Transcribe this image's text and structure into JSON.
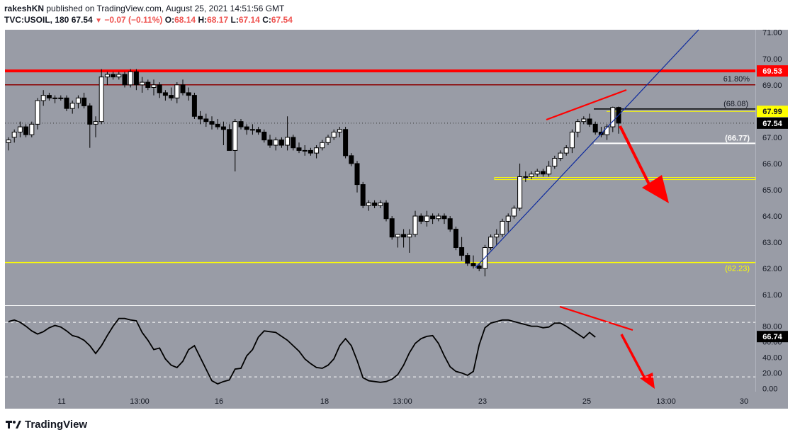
{
  "header": {
    "author": "rakeshKN",
    "published_text": "published on TradingView.com, August 25, 2021 14:51:56 GMT",
    "symbol": "TVC:USOIL, 180",
    "last": "67.54",
    "change": "−0.07 (−0.11%)",
    "o_label": "O:",
    "o_value": "68.14",
    "h_label": "H:",
    "h_value": "68.17",
    "l_label": "L:",
    "l_value": "67.14",
    "c_label": "C:",
    "c_value": "67.54"
  },
  "footer": {
    "brand": "TradingView"
  },
  "colors": {
    "background": "#999ca6",
    "up_candle": "#ffffff",
    "down_candle": "#000000",
    "resistance": "#ff0000",
    "fib": "#8b0000",
    "support": "#ffff00",
    "trendline": "#0d2a9e",
    "annotation": "#ff0000"
  },
  "chart_data": [
    {
      "type": "candlestick",
      "pane": "price",
      "x_ticks": [
        "11",
        "13:00",
        "16",
        "18",
        "13:00",
        "23",
        "25",
        "13:00",
        "30"
      ],
      "y_ticks": [
        "71.00",
        "70.00",
        "69.00",
        "68.00",
        "67.00",
        "66.00",
        "65.00",
        "64.00",
        "63.00",
        "62.00",
        "61.00"
      ],
      "ylim": [
        60.6,
        71.1
      ],
      "ohlc": [
        [
          66.8,
          67.0,
          66.5,
          66.9
        ],
        [
          67.0,
          67.3,
          66.8,
          67.2
        ],
        [
          67.2,
          67.6,
          67.0,
          67.4
        ],
        [
          67.4,
          67.5,
          67.0,
          67.1
        ],
        [
          67.1,
          67.6,
          67.0,
          67.5
        ],
        [
          67.5,
          68.5,
          67.3,
          68.4
        ],
        [
          68.4,
          68.8,
          68.2,
          68.6
        ],
        [
          68.6,
          68.7,
          68.4,
          68.5
        ],
        [
          68.5,
          68.6,
          68.3,
          68.5
        ],
        [
          68.5,
          68.6,
          68.4,
          68.5
        ],
        [
          68.5,
          68.6,
          68.0,
          68.1
        ],
        [
          68.1,
          68.4,
          67.9,
          68.3
        ],
        [
          68.3,
          68.6,
          68.1,
          68.5
        ],
        [
          68.5,
          68.7,
          68.1,
          68.2
        ],
        [
          68.2,
          68.3,
          66.6,
          67.5
        ],
        [
          67.5,
          67.8,
          67.0,
          67.6
        ],
        [
          67.6,
          69.6,
          67.5,
          69.3
        ],
        [
          69.3,
          69.5,
          69.0,
          69.4
        ],
        [
          69.4,
          69.5,
          69.2,
          69.3
        ],
        [
          69.3,
          69.5,
          69.2,
          69.4
        ],
        [
          69.4,
          69.5,
          68.9,
          69.0
        ],
        [
          69.0,
          69.6,
          68.9,
          69.5
        ],
        [
          69.5,
          69.6,
          68.8,
          69.0
        ],
        [
          69.0,
          69.3,
          68.7,
          69.1
        ],
        [
          69.1,
          69.2,
          68.8,
          68.9
        ],
        [
          68.9,
          69.2,
          68.6,
          69.0
        ],
        [
          69.0,
          69.1,
          68.5,
          68.7
        ],
        [
          68.7,
          68.8,
          68.4,
          68.6
        ],
        [
          68.6,
          68.9,
          68.4,
          68.5
        ],
        [
          68.5,
          69.1,
          68.3,
          69.0
        ],
        [
          69.0,
          69.2,
          68.6,
          68.7
        ],
        [
          68.7,
          68.9,
          68.4,
          68.6
        ],
        [
          68.6,
          68.7,
          67.7,
          67.8
        ],
        [
          67.8,
          68.0,
          67.5,
          67.7
        ],
        [
          67.7,
          67.9,
          67.4,
          67.6
        ],
        [
          67.6,
          67.8,
          67.3,
          67.5
        ],
        [
          67.5,
          67.7,
          67.3,
          67.4
        ],
        [
          67.4,
          67.6,
          66.7,
          67.3
        ],
        [
          67.3,
          67.5,
          66.5,
          66.5
        ],
        [
          66.5,
          67.7,
          65.7,
          67.6
        ],
        [
          67.6,
          67.7,
          67.3,
          67.4
        ],
        [
          67.4,
          67.5,
          67.1,
          67.3
        ],
        [
          67.3,
          67.5,
          67.1,
          67.3
        ],
        [
          67.3,
          67.4,
          67.1,
          67.2
        ],
        [
          67.2,
          67.3,
          66.8,
          66.9
        ],
        [
          66.9,
          67.1,
          66.6,
          66.7
        ],
        [
          66.7,
          67.0,
          66.5,
          66.9
        ],
        [
          66.9,
          67.0,
          66.6,
          66.7
        ],
        [
          66.7,
          67.8,
          66.5,
          67.0
        ],
        [
          67.0,
          67.1,
          66.5,
          66.6
        ],
        [
          66.6,
          66.8,
          66.4,
          66.5
        ],
        [
          66.5,
          66.7,
          66.3,
          66.5
        ],
        [
          66.5,
          66.6,
          66.3,
          66.4
        ],
        [
          66.4,
          66.7,
          66.2,
          66.6
        ],
        [
          66.6,
          66.9,
          66.5,
          66.8
        ],
        [
          66.8,
          67.1,
          66.7,
          67.0
        ],
        [
          67.0,
          67.3,
          66.9,
          67.2
        ],
        [
          67.2,
          67.4,
          67.0,
          67.3
        ],
        [
          67.3,
          67.4,
          66.2,
          66.3
        ],
        [
          66.3,
          66.4,
          65.9,
          66.0
        ],
        [
          66.0,
          66.1,
          64.9,
          65.2
        ],
        [
          65.2,
          65.3,
          64.3,
          64.4
        ],
        [
          64.4,
          64.6,
          64.2,
          64.5
        ],
        [
          64.5,
          64.6,
          64.3,
          64.4
        ],
        [
          64.4,
          64.6,
          64.3,
          64.5
        ],
        [
          64.5,
          64.6,
          63.8,
          63.9
        ],
        [
          63.9,
          64.0,
          63.1,
          63.2
        ],
        [
          63.2,
          63.3,
          62.8,
          63.3
        ],
        [
          63.3,
          63.5,
          62.8,
          63.2
        ],
        [
          63.2,
          63.5,
          62.6,
          63.3
        ],
        [
          63.3,
          64.2,
          63.2,
          64.0
        ],
        [
          64.0,
          64.1,
          63.7,
          63.8
        ],
        [
          63.8,
          64.2,
          63.6,
          64.0
        ],
        [
          64.0,
          64.1,
          63.7,
          63.9
        ],
        [
          63.9,
          64.1,
          63.8,
          64.0
        ],
        [
          64.0,
          64.1,
          63.7,
          63.9
        ],
        [
          63.9,
          64.0,
          63.4,
          63.5
        ],
        [
          63.5,
          63.6,
          62.7,
          62.8
        ],
        [
          62.8,
          63.2,
          62.3,
          62.5
        ],
        [
          62.5,
          62.6,
          62.1,
          62.2
        ],
        [
          62.2,
          62.5,
          62.0,
          62.1
        ],
        [
          62.1,
          62.2,
          61.9,
          62.0
        ],
        [
          62.0,
          62.9,
          61.7,
          62.8
        ],
        [
          62.8,
          63.3,
          62.7,
          63.2
        ],
        [
          63.2,
          63.5,
          62.9,
          63.3
        ],
        [
          63.3,
          63.9,
          63.2,
          63.8
        ],
        [
          63.8,
          64.1,
          63.4,
          64.0
        ],
        [
          64.0,
          64.4,
          63.9,
          64.3
        ],
        [
          64.3,
          66.0,
          64.2,
          65.5
        ],
        [
          65.5,
          65.7,
          65.3,
          65.5
        ],
        [
          65.5,
          65.7,
          65.4,
          65.6
        ],
        [
          65.6,
          65.8,
          65.5,
          65.7
        ],
        [
          65.7,
          65.8,
          65.5,
          65.6
        ],
        [
          65.6,
          66.1,
          65.5,
          65.9
        ],
        [
          65.9,
          66.3,
          65.8,
          66.2
        ],
        [
          66.2,
          66.5,
          66.1,
          66.4
        ],
        [
          66.4,
          66.7,
          66.3,
          66.6
        ],
        [
          66.6,
          67.3,
          66.4,
          67.2
        ],
        [
          67.2,
          67.7,
          67.0,
          67.6
        ],
        [
          67.6,
          67.8,
          67.5,
          67.7
        ],
        [
          67.7,
          67.9,
          67.4,
          67.5
        ],
        [
          67.5,
          67.6,
          67.1,
          67.2
        ],
        [
          67.2,
          67.4,
          67.0,
          67.1
        ],
        [
          67.1,
          67.5,
          66.9,
          67.4
        ],
        [
          67.4,
          68.17,
          67.2,
          68.14
        ],
        [
          68.14,
          68.17,
          67.14,
          67.54
        ]
      ],
      "levels": [
        {
          "kind": "resistance",
          "value": 69.53,
          "label": "69.53"
        },
        {
          "kind": "fib",
          "value": 69.0,
          "label": "61.80%"
        },
        {
          "kind": "level",
          "value": 68.08,
          "label": "(68.08)"
        },
        {
          "kind": "level",
          "value": 67.99,
          "label": "67.99"
        },
        {
          "kind": "level",
          "value": 66.77,
          "label": "(66.77)"
        },
        {
          "kind": "level",
          "value": 65.43,
          "label": ""
        },
        {
          "kind": "support",
          "value": 62.23,
          "label": "(62.23)"
        }
      ],
      "last_price": {
        "value": 67.54,
        "label": "67.54"
      }
    },
    {
      "type": "line",
      "pane": "oscillator",
      "y_ticks": [
        "80.00",
        "60.00",
        "40.00",
        "20.00",
        "0.00"
      ],
      "ylim": [
        -4,
        106
      ],
      "bands": [
        85,
        15
      ],
      "values": [
        86,
        88,
        85,
        80,
        74,
        70,
        73,
        78,
        81,
        79,
        74,
        68,
        66,
        62,
        55,
        45,
        55,
        68,
        80,
        90,
        90,
        88,
        87,
        72,
        62,
        50,
        52,
        38,
        30,
        27,
        35,
        50,
        55,
        40,
        25,
        10,
        6,
        9,
        11,
        25,
        26,
        42,
        50,
        66,
        74,
        73,
        72,
        67,
        62,
        55,
        48,
        38,
        32,
        27,
        26,
        30,
        38,
        55,
        64,
        55,
        36,
        14,
        10,
        9,
        8,
        9,
        12,
        18,
        30,
        46,
        58,
        64,
        67,
        68,
        58,
        42,
        28,
        22,
        20,
        17,
        22,
        56,
        78,
        84,
        86,
        88,
        88,
        86,
        84,
        82,
        80,
        80,
        78,
        79,
        84,
        84,
        80,
        75,
        70,
        65,
        72,
        66
      ],
      "last_value": {
        "value": 66.74,
        "label": "66.74"
      }
    }
  ]
}
